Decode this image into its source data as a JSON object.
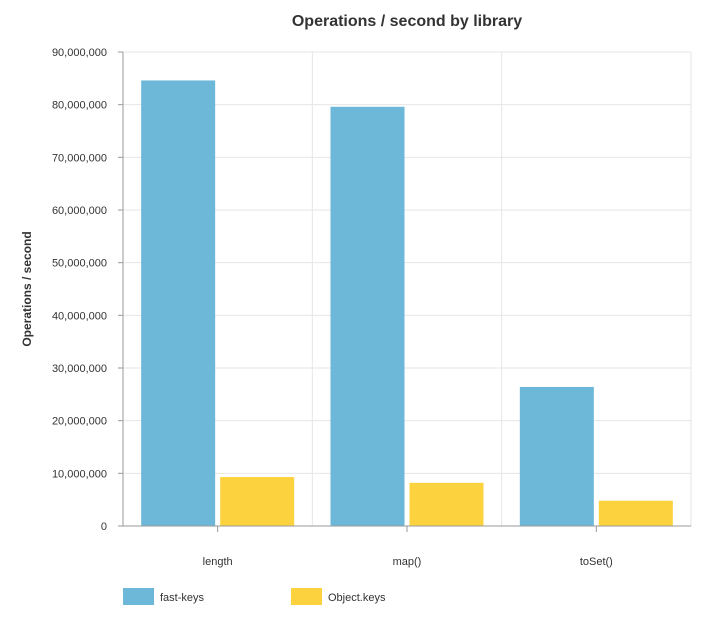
{
  "chart_data": {
    "type": "bar",
    "title": "Operations / second by library",
    "xlabel": "",
    "ylabel": "Operations / second",
    "categories": [
      "length",
      "map()",
      "toSet()"
    ],
    "series": [
      {
        "name": "fast-keys",
        "values": [
          84600000,
          79600000,
          26400000
        ],
        "color": "#6db8d9"
      },
      {
        "name": "Object.keys",
        "values": [
          9300000,
          8200000,
          4800000
        ],
        "color": "#fcd33e"
      }
    ],
    "ylim": [
      0,
      90000000
    ],
    "yticks": [
      0,
      10000000,
      20000000,
      30000000,
      40000000,
      50000000,
      60000000,
      70000000,
      80000000,
      90000000
    ],
    "ytick_labels": [
      "0",
      "10,000,000",
      "20,000,000",
      "30,000,000",
      "40,000,000",
      "50,000,000",
      "60,000,000",
      "70,000,000",
      "80,000,000",
      "90,000,000"
    ],
    "grid": true,
    "legend_position": "bottom-left"
  }
}
